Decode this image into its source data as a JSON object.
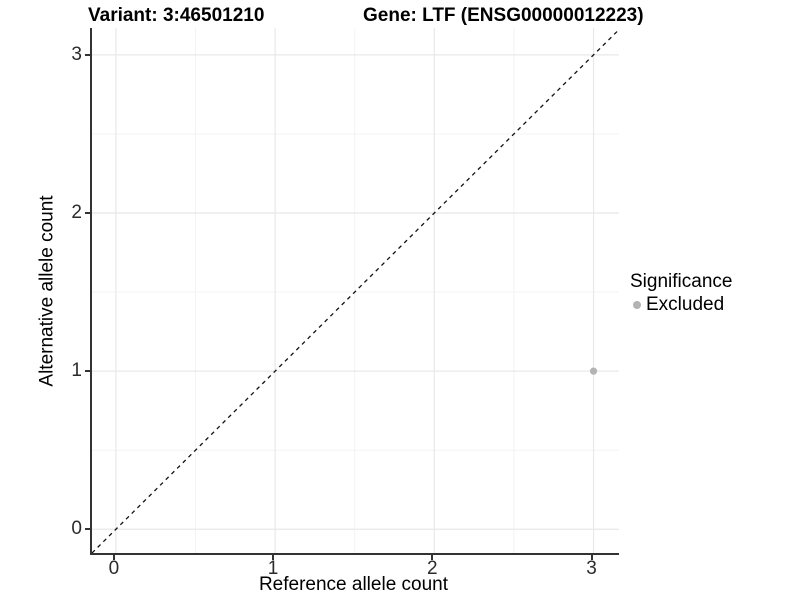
{
  "chart_data": {
    "type": "scatter",
    "title_left": "Variant: 3:46501210",
    "title_right": "Gene: LTF (ENSG00000012223)",
    "xlabel": "Reference allele count",
    "ylabel": "Alternative allele count",
    "xlim": [
      -0.15,
      3.16
    ],
    "ylim": [
      -0.15,
      3.17
    ],
    "x_ticks": [
      0,
      1,
      2,
      3
    ],
    "y_ticks": [
      0,
      1,
      2,
      3
    ],
    "x_minor_ticks": [
      0.5,
      1.5,
      2.5
    ],
    "y_minor_ticks": [
      0.5,
      1.5,
      2.5
    ],
    "grid": "major+minor",
    "legend": {
      "title": "Significance",
      "position": "right",
      "entries": [
        {
          "label": "Excluded",
          "marker": "circle",
          "color": "#b3b3b3"
        }
      ]
    },
    "series": [
      {
        "name": "Excluded",
        "color": "#b3b3b3",
        "points": [
          [
            3,
            1
          ]
        ],
        "point_radius": 3.6
      }
    ],
    "identity_line": {
      "style": "dashed",
      "color": "#111111",
      "from": [
        -0.15,
        -0.15
      ],
      "to": [
        3.17,
        3.17
      ]
    },
    "colors": {
      "grid_major": "#e8e8e8",
      "grid_minor": "#f3f3f3",
      "axis_line": "#333333",
      "background": "#ffffff"
    }
  }
}
